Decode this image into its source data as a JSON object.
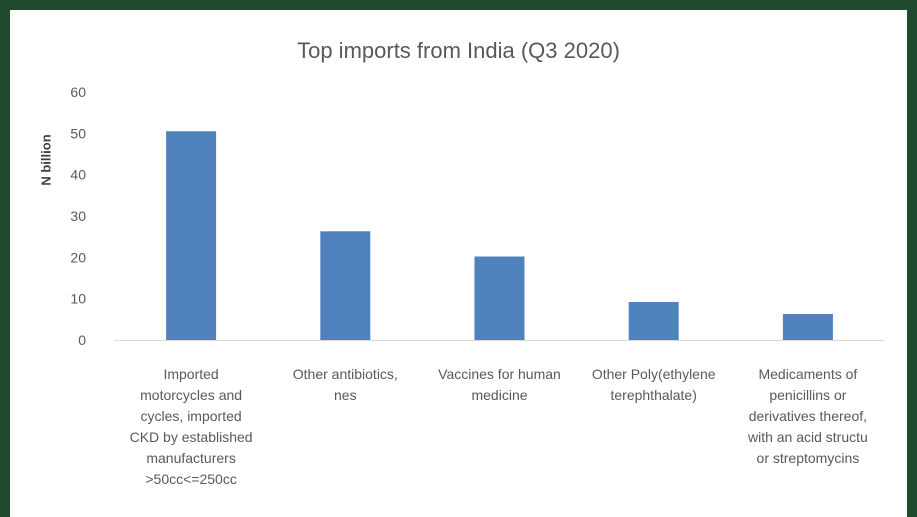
{
  "chart_data": {
    "type": "bar",
    "title": "Top imports from India (Q3 2020)",
    "xlabel": "",
    "ylabel": "N billion",
    "ylim": [
      0,
      60
    ],
    "yticks": [
      0,
      10,
      20,
      30,
      40,
      50,
      60
    ],
    "grid": false,
    "categories": [
      "Imported\nmotorcycles and\ncycles, imported\nCKD by established\nmanufacturers\n>50cc<=250cc",
      "Other antibiotics,\nnes",
      "Vaccines for human\nmedicine",
      "Other Poly(ethylene\nterephthalate)",
      "Medicaments of\npenicillins or\nderivatives thereof,\nwith an acid structu\nor streptomycins"
    ],
    "values": [
      50.5,
      26.3,
      20.2,
      9.2,
      6.3
    ],
    "colors": {
      "bar": "#4f81bd",
      "axis": "#d9d9d9",
      "frame": "#1f4a2c"
    }
  }
}
